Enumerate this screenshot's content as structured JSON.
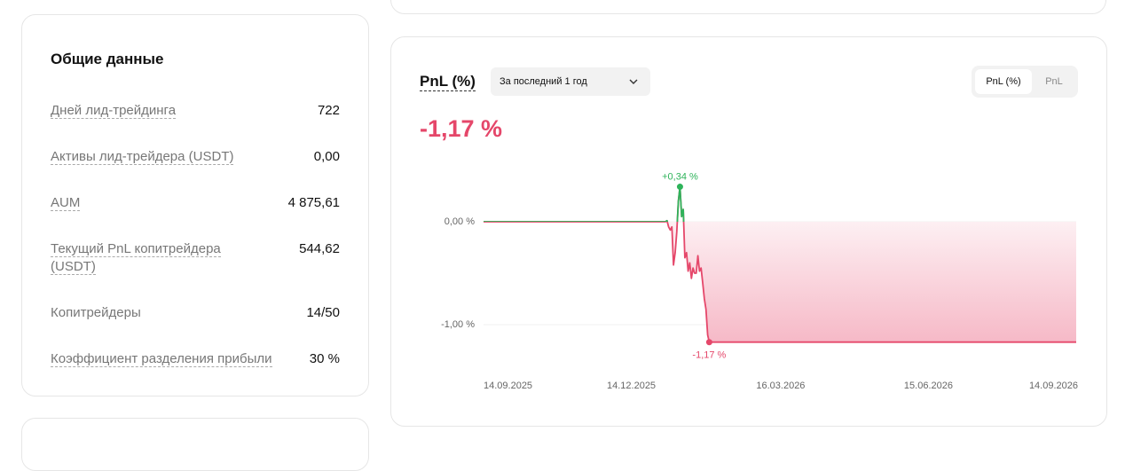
{
  "summary": {
    "title": "Общие данные",
    "rows": [
      {
        "label": "Дней лид-трейдинга",
        "value": "722"
      },
      {
        "label": "Активы лид-трейдера (USDT)",
        "value": "0,00"
      },
      {
        "label": "AUM",
        "value": "4 875,61"
      },
      {
        "label": "Текущий PnL копитрейдера (USDT)",
        "value": "544,62"
      },
      {
        "label": "Копитрейдеры",
        "value": "14/50"
      },
      {
        "label": "Коэффициент разделения прибыли",
        "value": "30 %"
      }
    ]
  },
  "pnl_panel": {
    "title": "PnL (%)",
    "period": "За последний 1 год",
    "tabs": [
      "PnL (%)",
      "PnL"
    ],
    "current_value": "-1,17 %"
  },
  "chart_data": {
    "type": "line",
    "x": [
      "14.09.2025",
      "04.01.2026",
      "05.01.2026",
      "06.01.2026",
      "07.01.2026",
      "08.01.2026",
      "09.01.2026",
      "10.01.2026",
      "11.01.2026",
      "12.01.2026",
      "13.01.2026",
      "14.01.2026",
      "15.01.2026",
      "16.01.2026",
      "17.01.2026",
      "18.01.2026",
      "19.01.2026",
      "20.01.2026",
      "21.01.2026",
      "22.01.2026",
      "23.01.2026",
      "24.01.2026",
      "25.01.2026",
      "26.01.2026",
      "27.01.2026",
      "28.01.2026",
      "29.01.2026",
      "30.01.2026",
      "31.01.2026",
      "14.09.2026"
    ],
    "series": [
      {
        "color": "#e5476a",
        "positive_color": "#2eb35a",
        "values": [
          0,
          0,
          0.01,
          -0.05,
          -0.08,
          -0.05,
          -0.42,
          -0.3,
          -0.1,
          0.2,
          0.34,
          0.05,
          0.12,
          -0.35,
          -0.3,
          -0.48,
          -0.4,
          -0.55,
          -0.45,
          -0.5,
          -0.5,
          -0.33,
          -0.48,
          -0.45,
          -0.6,
          -0.75,
          -0.85,
          -1.1,
          -1.17,
          -1.17
        ]
      }
    ],
    "xlim": [
      "14.09.2025",
      "14.09.2026"
    ],
    "xticks": [
      "14.09.2025",
      "14.12.2025",
      "16.03.2026",
      "15.06.2026",
      "14.09.2026"
    ],
    "ylim": [
      -1.5,
      0.5
    ],
    "yticks": [
      {
        "value": 0,
        "label": "0,00 %"
      },
      {
        "value": -1,
        "label": "-1,00 %"
      }
    ],
    "grid": true,
    "annotations": [
      {
        "text": "+0,34 %",
        "x": "13.01.2026",
        "y": 0.34,
        "color": "#2eb35a"
      },
      {
        "text": "-1,17 %",
        "x": "31.01.2026",
        "y": -1.17,
        "color": "#e5476a"
      }
    ]
  }
}
